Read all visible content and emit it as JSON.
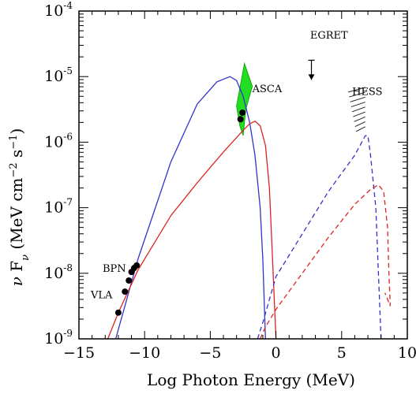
{
  "chart_data": {
    "type": "line",
    "xlabel": "Log Photon Energy (MeV)",
    "ylabel": "ν F_ν (MeV cm⁻² s⁻¹)",
    "xlim": [
      -15,
      10
    ],
    "ylim_log10": [
      -9,
      -4
    ],
    "x_scale": "linear",
    "y_scale": "log",
    "grid": false,
    "x_ticks": [
      {
        "value": -15,
        "label": "−15"
      },
      {
        "value": -10,
        "label": "−10"
      },
      {
        "value": -5,
        "label": "−5"
      },
      {
        "value": 0,
        "label": "0"
      },
      {
        "value": 5,
        "label": "5"
      },
      {
        "value": 10,
        "label": "10"
      }
    ],
    "y_ticks": [
      {
        "value": -9,
        "base": "10",
        "exp": "-9"
      },
      {
        "value": -8,
        "base": "10",
        "exp": "-8"
      },
      {
        "value": -7,
        "base": "10",
        "exp": "-7"
      },
      {
        "value": -6,
        "base": "10",
        "exp": "-6"
      },
      {
        "value": -5,
        "base": "10",
        "exp": "-5"
      },
      {
        "value": -4,
        "base": "10",
        "exp": "-4"
      }
    ],
    "series": [
      {
        "color": "#3333cc",
        "dash": "solid",
        "points": [
          [
            -12.2,
            -9.0
          ],
          [
            -11.5,
            -8.5
          ],
          [
            -10.5,
            -7.78
          ],
          [
            -8,
            -6.3
          ],
          [
            -6,
            -5.42
          ],
          [
            -4.5,
            -5.08
          ],
          [
            -3.5,
            -5.0
          ],
          [
            -3.0,
            -5.06
          ],
          [
            -2.5,
            -5.3
          ],
          [
            -2.0,
            -5.7
          ],
          [
            -1.6,
            -6.2
          ],
          [
            -1.2,
            -7.0
          ],
          [
            -1.0,
            -7.8
          ],
          [
            -0.8,
            -9.0
          ]
        ]
      },
      {
        "color": "#dd2222",
        "dash": "solid",
        "points": [
          [
            -12.8,
            -9.0
          ],
          [
            -12,
            -8.6
          ],
          [
            -10.5,
            -7.95
          ],
          [
            -8,
            -7.12
          ],
          [
            -6,
            -6.62
          ],
          [
            -4,
            -6.15
          ],
          [
            -2.5,
            -5.82
          ],
          [
            -2.0,
            -5.72
          ],
          [
            -1.6,
            -5.68
          ],
          [
            -1.2,
            -5.75
          ],
          [
            -0.8,
            -6.05
          ],
          [
            -0.5,
            -6.7
          ],
          [
            -0.3,
            -7.6
          ],
          [
            0,
            -9.0
          ]
        ]
      },
      {
        "color": "#3333cc",
        "dash": "dashed",
        "points": [
          [
            -1.4,
            -9.0
          ],
          [
            -1.0,
            -8.75
          ],
          [
            0,
            -8.05
          ],
          [
            2,
            -7.4
          ],
          [
            4,
            -6.75
          ],
          [
            6,
            -6.2
          ],
          [
            6.8,
            -5.9
          ],
          [
            7.0,
            -5.9
          ],
          [
            7.2,
            -6.2
          ],
          [
            7.6,
            -7.0
          ],
          [
            7.8,
            -8.0
          ],
          [
            8.0,
            -9.0
          ]
        ]
      },
      {
        "color": "#dd2222",
        "dash": "dashed",
        "points": [
          [
            -1.2,
            -9.0
          ],
          [
            -0.8,
            -8.82
          ],
          [
            0,
            -8.55
          ],
          [
            2,
            -8.0
          ],
          [
            4,
            -7.45
          ],
          [
            6,
            -6.95
          ],
          [
            7.2,
            -6.72
          ],
          [
            7.8,
            -6.65
          ],
          [
            8.2,
            -6.75
          ],
          [
            8.5,
            -7.3
          ],
          [
            8.6,
            -8.0
          ],
          [
            8.7,
            -8.5
          ],
          [
            8.3,
            -8.3
          ]
        ]
      }
    ],
    "data_points": [
      {
        "x": -12.0,
        "y": -8.6
      },
      {
        "x": -11.5,
        "y": -8.28
      },
      {
        "x": -11.2,
        "y": -8.11
      },
      {
        "x": -11.0,
        "y": -7.98
      },
      {
        "x": -10.8,
        "y": -7.92
      },
      {
        "x": -10.6,
        "y": -7.88
      },
      {
        "x": -2.7,
        "y": -5.65
      },
      {
        "x": -2.55,
        "y": -5.55
      }
    ],
    "annotations": [
      {
        "id": "egret",
        "text": "EGRET",
        "x": 2.6,
        "y": -4.42
      },
      {
        "id": "asca",
        "text": "ASCA",
        "x": -1.8,
        "y": -5.24
      },
      {
        "id": "hess",
        "text": "HESS",
        "x": 5.8,
        "y": -5.28
      },
      {
        "id": "bpn",
        "text": "BPN",
        "x": -13.2,
        "y": -7.98
      },
      {
        "id": "vla",
        "text": "VLA",
        "x": -14.1,
        "y": -8.38
      }
    ],
    "egret_upper_limit": {
      "x": 2.7,
      "y_from": -4.75,
      "y_to": -5.05
    },
    "asca_region": {
      "x_from": -3.0,
      "x_to": -1.8,
      "y_from": -4.8,
      "y_to": -5.9
    },
    "hess_region": {
      "x_from": 5.5,
      "x_to": 6.8,
      "y_from": -5.2,
      "y_to": -5.8
    }
  }
}
